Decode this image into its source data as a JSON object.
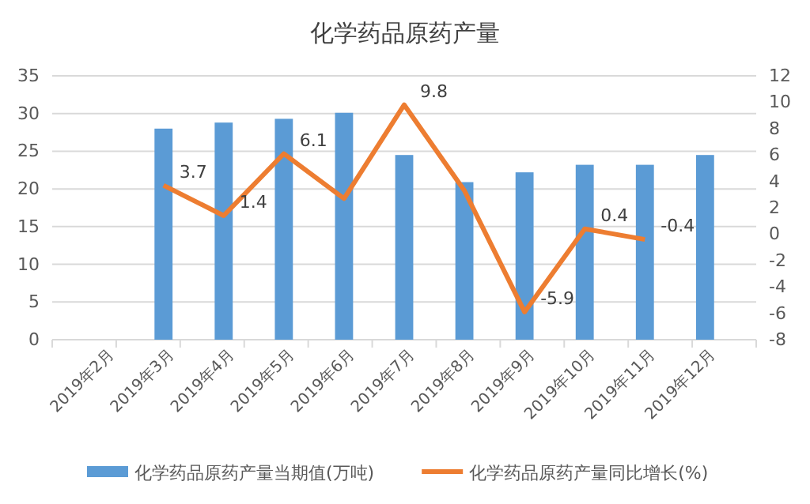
{
  "chart_data": {
    "type": "bar",
    "title": "化学药品原药产量",
    "categories": [
      "2019年2月",
      "2019年3月",
      "2019年4月",
      "2019年5月",
      "2019年6月",
      "2019年7月",
      "2019年8月",
      "2019年9月",
      "2019年10月",
      "2019年11月",
      "2019年12月"
    ],
    "series": [
      {
        "name": "化学药品原药产量当期值(万吨)",
        "color": "#5b9bd5",
        "values": [
          null,
          28.0,
          28.8,
          29.3,
          30.1,
          24.5,
          20.9,
          22.2,
          23.2,
          23.2,
          24.5
        ]
      },
      {
        "name": "化学药品原药产量同比增长(%)",
        "type": "line",
        "axis": "y2",
        "color": "#ed7d31",
        "values": [
          null,
          3.7,
          1.4,
          6.1,
          2.7,
          9.8,
          3.3,
          -5.9,
          0.4,
          -0.4,
          null
        ],
        "value_labels": [
          null,
          "3.7",
          "1.4",
          "6.1",
          null,
          "9.8",
          null,
          "-5.9",
          "0.4",
          "-0.4",
          null
        ]
      }
    ],
    "ylim": [
      0,
      35
    ],
    "yticks": [
      0,
      5,
      10,
      15,
      20,
      25,
      30,
      35
    ],
    "y2lim": [
      -8,
      12
    ],
    "y2ticks": [
      -8,
      -6,
      -4,
      -2,
      0,
      2,
      4,
      6,
      8,
      10,
      12
    ],
    "grid": "y",
    "legend": "bottom",
    "marker": "none",
    "line_style": "solid"
  }
}
